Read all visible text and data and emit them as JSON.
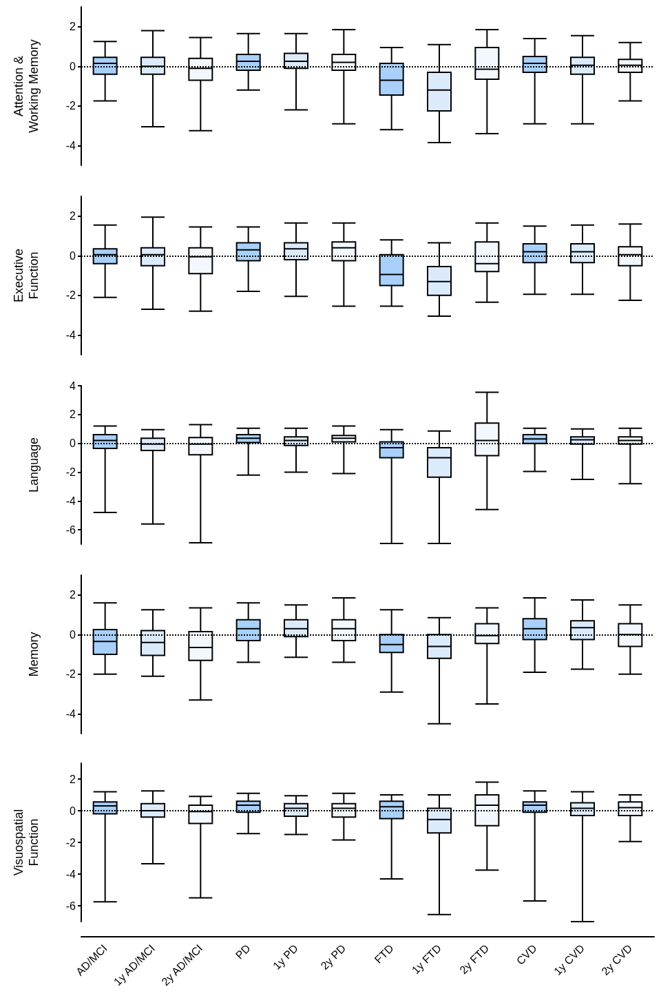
{
  "chart_data": [
    {
      "type": "box",
      "ylabel": "Attention & Working Memory",
      "categories": [
        null,
        null,
        null,
        null,
        null,
        null,
        null,
        null,
        null,
        null,
        null,
        null
      ],
      "colors": [
        "#a9d0fb",
        "#dcebfc",
        "#f3f8fe",
        "#a9d0fb",
        "#dcebfc",
        "#f3f8fe",
        "#a9d0fb",
        "#dcebfc",
        "#f3f8fe",
        "#a9d0fb",
        "#dcebfc",
        "#f3f8fe"
      ],
      "ylim": [
        -5,
        3
      ],
      "yticks": [
        -4,
        -2,
        0,
        2
      ],
      "tick_labels": "y",
      "ref_lines": [
        {
          "axis": "y",
          "value": 0,
          "line_style": "dotted"
        }
      ],
      "boxes": [
        {
          "low": -1.75,
          "q1": -0.4,
          "median": 0.15,
          "q3": 0.45,
          "high": 1.25
        },
        {
          "low": -3.05,
          "q1": -0.4,
          "median": 0,
          "q3": 0.45,
          "high": 1.8
        },
        {
          "low": -3.25,
          "q1": -0.7,
          "median": -0.1,
          "q3": 0.4,
          "high": 1.45
        },
        {
          "low": -1.2,
          "q1": -0.2,
          "median": 0.25,
          "q3": 0.6,
          "high": 1.65
        },
        {
          "low": -2.2,
          "q1": -0.1,
          "median": 0.25,
          "q3": 0.65,
          "high": 1.65
        },
        {
          "low": -2.9,
          "q1": -0.2,
          "median": 0.2,
          "q3": 0.6,
          "high": 1.85
        },
        {
          "low": -3.2,
          "q1": -1.45,
          "median": -0.7,
          "q3": 0.15,
          "high": 0.95
        },
        {
          "low": -3.85,
          "q1": -2.25,
          "median": -1.2,
          "q3": -0.3,
          "high": 1.1
        },
        {
          "low": -3.4,
          "q1": -0.65,
          "median": -0.15,
          "q3": 0.95,
          "high": 1.85
        },
        {
          "low": -2.9,
          "q1": -0.3,
          "median": 0.15,
          "q3": 0.5,
          "high": 1.4
        },
        {
          "low": -2.9,
          "q1": -0.4,
          "median": 0.05,
          "q3": 0.45,
          "high": 1.55
        },
        {
          "low": -1.75,
          "q1": -0.3,
          "median": 0.05,
          "q3": 0.35,
          "high": 1.2
        }
      ]
    },
    {
      "type": "box",
      "ylabel": "Executive Function",
      "categories": [
        null,
        null,
        null,
        null,
        null,
        null,
        null,
        null,
        null,
        null,
        null,
        null
      ],
      "colors": [
        "#a9d0fb",
        "#dcebfc",
        "#f3f8fe",
        "#a9d0fb",
        "#dcebfc",
        "#f3f8fe",
        "#a9d0fb",
        "#dcebfc",
        "#f3f8fe",
        "#a9d0fb",
        "#dcebfc",
        "#f3f8fe"
      ],
      "ylim": [
        -5,
        3
      ],
      "yticks": [
        -4,
        -2,
        0,
        2
      ],
      "tick_labels": "y",
      "ref_lines": [
        {
          "axis": "y",
          "value": 0,
          "line_style": "dotted"
        }
      ],
      "boxes": [
        {
          "low": -2.1,
          "q1": -0.4,
          "median": 0.05,
          "q3": 0.35,
          "high": 1.55
        },
        {
          "low": -2.7,
          "q1": -0.5,
          "median": 0.05,
          "q3": 0.4,
          "high": 1.95
        },
        {
          "low": -2.8,
          "q1": -0.9,
          "median": -0.05,
          "q3": 0.4,
          "high": 1.45
        },
        {
          "low": -1.8,
          "q1": -0.25,
          "median": 0.3,
          "q3": 0.65,
          "high": 1.45
        },
        {
          "low": -2.05,
          "q1": -0.2,
          "median": 0.35,
          "q3": 0.65,
          "high": 1.65
        },
        {
          "low": -2.55,
          "q1": -0.25,
          "median": 0.4,
          "q3": 0.7,
          "high": 1.65
        },
        {
          "low": -2.55,
          "q1": -1.5,
          "median": -0.95,
          "q3": 0.05,
          "high": 0.8
        },
        {
          "low": -3.05,
          "q1": -2,
          "median": -1.3,
          "q3": -0.55,
          "high": 0.65
        },
        {
          "low": -2.35,
          "q1": -0.8,
          "median": -0.4,
          "q3": 0.7,
          "high": 1.65
        },
        {
          "low": -1.95,
          "q1": -0.35,
          "median": 0.2,
          "q3": 0.6,
          "high": 1.5
        },
        {
          "low": -1.95,
          "q1": -0.35,
          "median": 0.2,
          "q3": 0.6,
          "high": 1.55
        },
        {
          "low": -2.25,
          "q1": -0.5,
          "median": 0.05,
          "q3": 0.45,
          "high": 1.6
        }
      ]
    },
    {
      "type": "box",
      "ylabel": "Language",
      "categories": [
        null,
        null,
        null,
        null,
        null,
        null,
        null,
        null,
        null,
        null,
        null,
        null
      ],
      "colors": [
        "#a9d0fb",
        "#dcebfc",
        "#f3f8fe",
        "#a9d0fb",
        "#dcebfc",
        "#f3f8fe",
        "#a9d0fb",
        "#dcebfc",
        "#f3f8fe",
        "#a9d0fb",
        "#dcebfc",
        "#f3f8fe"
      ],
      "ylim": [
        -7,
        4
      ],
      "yticks": [
        -6,
        -4,
        -2,
        0,
        2,
        4
      ],
      "tick_labels": "y",
      "ref_lines": [
        {
          "axis": "y",
          "value": 0,
          "line_style": "dotted"
        }
      ],
      "boxes": [
        {
          "low": -4.8,
          "q1": -0.35,
          "median": 0.2,
          "q3": 0.6,
          "high": 1.2
        },
        {
          "low": -5.6,
          "q1": -0.5,
          "median": -0.05,
          "q3": 0.35,
          "high": 0.95
        },
        {
          "low": -6.9,
          "q1": -0.8,
          "median": -0.05,
          "q3": 0.4,
          "high": 1.3
        },
        {
          "low": -2.2,
          "q1": 0.05,
          "median": 0.35,
          "q3": 0.6,
          "high": 1.05
        },
        {
          "low": -2,
          "q1": -0.15,
          "median": 0.2,
          "q3": 0.45,
          "high": 1.05
        },
        {
          "low": -2.1,
          "q1": 0.1,
          "median": 0.35,
          "q3": 0.55,
          "high": 1.2
        },
        {
          "low": -6.95,
          "q1": -1,
          "median": -0.3,
          "q3": 0.1,
          "high": 0.95
        },
        {
          "low": -6.95,
          "q1": -2.35,
          "median": -1,
          "q3": -0.3,
          "high": 0.85
        },
        {
          "low": -4.6,
          "q1": -0.85,
          "median": 0.2,
          "q3": 1.4,
          "high": 3.55
        },
        {
          "low": -1.95,
          "q1": 0,
          "median": 0.3,
          "q3": 0.6,
          "high": 1.05
        },
        {
          "low": -2.5,
          "q1": -0.05,
          "median": 0.25,
          "q3": 0.45,
          "high": 1
        },
        {
          "low": -2.8,
          "q1": -0.05,
          "median": 0.2,
          "q3": 0.45,
          "high": 1.05
        }
      ]
    },
    {
      "type": "box",
      "ylabel": "Memory",
      "categories": [
        null,
        null,
        null,
        null,
        null,
        null,
        null,
        null,
        null,
        null,
        null,
        null
      ],
      "colors": [
        "#a9d0fb",
        "#dcebfc",
        "#f3f8fe",
        "#a9d0fb",
        "#dcebfc",
        "#f3f8fe",
        "#a9d0fb",
        "#dcebfc",
        "#f3f8fe",
        "#a9d0fb",
        "#dcebfc",
        "#f3f8fe"
      ],
      "ylim": [
        -5,
        3
      ],
      "yticks": [
        -4,
        -2,
        0,
        2
      ],
      "tick_labels": "y",
      "ref_lines": [
        {
          "axis": "y",
          "value": 0,
          "line_style": "dotted"
        }
      ],
      "boxes": [
        {
          "low": -2,
          "q1": -1,
          "median": -0.35,
          "q3": 0.25,
          "high": 1.6
        },
        {
          "low": -2.1,
          "q1": -1.05,
          "median": -0.4,
          "q3": 0.2,
          "high": 1.25
        },
        {
          "low": -3.3,
          "q1": -1.3,
          "median": -0.65,
          "q3": 0.15,
          "high": 1.35
        },
        {
          "low": -1.4,
          "q1": -0.3,
          "median": 0.3,
          "q3": 0.75,
          "high": 1.6
        },
        {
          "low": -1.15,
          "q1": -0.1,
          "median": 0.3,
          "q3": 0.75,
          "high": 1.5
        },
        {
          "low": -1.4,
          "q1": -0.3,
          "median": 0.3,
          "q3": 0.75,
          "high": 1.85
        },
        {
          "low": -2.9,
          "q1": -0.9,
          "median": -0.5,
          "q3": 0,
          "high": 1.25
        },
        {
          "low": -4.5,
          "q1": -1.2,
          "median": -0.6,
          "q3": 0,
          "high": 0.85
        },
        {
          "low": -3.5,
          "q1": -0.45,
          "median": -0.05,
          "q3": 0.55,
          "high": 1.35
        },
        {
          "low": -1.9,
          "q1": -0.25,
          "median": 0.3,
          "q3": 0.8,
          "high": 1.85
        },
        {
          "low": -1.75,
          "q1": -0.25,
          "median": 0.35,
          "q3": 0.7,
          "high": 1.75
        },
        {
          "low": -2,
          "q1": -0.6,
          "median": 0,
          "q3": 0.55,
          "high": 1.5
        }
      ]
    },
    {
      "type": "box",
      "ylabel": "Visuospatial Function",
      "categories": [
        "AD/MCI",
        "1y AD/MCI",
        "2y AD/MCI",
        "PD",
        "1y PD",
        "2y PD",
        "FTD",
        "1y FTD",
        "2y FTD",
        "CVD",
        "1y CVD",
        "2y CVD"
      ],
      "colors": [
        "#a9d0fb",
        "#dcebfc",
        "#f3f8fe",
        "#a9d0fb",
        "#dcebfc",
        "#f3f8fe",
        "#a9d0fb",
        "#dcebfc",
        "#f3f8fe",
        "#a9d0fb",
        "#dcebfc",
        "#f3f8fe"
      ],
      "ylim": [
        -7,
        3
      ],
      "yticks": [
        -6,
        -4,
        -2,
        0,
        2
      ],
      "ref_lines": [
        {
          "axis": "y",
          "value": 0,
          "line_style": "dotted"
        }
      ],
      "boxes": [
        {
          "low": -5.75,
          "q1": -0.2,
          "median": 0.3,
          "q3": 0.55,
          "high": 1.2
        },
        {
          "low": -3.35,
          "q1": -0.4,
          "median": 0,
          "q3": 0.45,
          "high": 1.25
        },
        {
          "low": -5.5,
          "q1": -0.8,
          "median": -0.05,
          "q3": 0.35,
          "high": 0.9
        },
        {
          "low": -1.45,
          "q1": -0.1,
          "median": 0.35,
          "q3": 0.6,
          "high": 1.1
        },
        {
          "low": -1.5,
          "q1": -0.35,
          "median": 0.15,
          "q3": 0.45,
          "high": 0.95
        },
        {
          "low": -1.85,
          "q1": -0.4,
          "median": 0.15,
          "q3": 0.45,
          "high": 1.1
        },
        {
          "low": -4.3,
          "q1": -0.5,
          "median": 0.25,
          "q3": 0.6,
          "high": 1
        },
        {
          "low": -6.55,
          "q1": -1.4,
          "median": -0.55,
          "q3": 0.15,
          "high": 1
        },
        {
          "low": -3.75,
          "q1": -0.95,
          "median": 0.35,
          "q3": 1,
          "high": 1.8
        },
        {
          "low": -5.7,
          "q1": -0.1,
          "median": 0.35,
          "q3": 0.55,
          "high": 1.25
        },
        {
          "low": -7,
          "q1": -0.3,
          "median": 0.15,
          "q3": 0.5,
          "high": 1.2
        },
        {
          "low": -1.95,
          "q1": -0.3,
          "median": 0.2,
          "q3": 0.55,
          "high": 1
        }
      ]
    }
  ]
}
